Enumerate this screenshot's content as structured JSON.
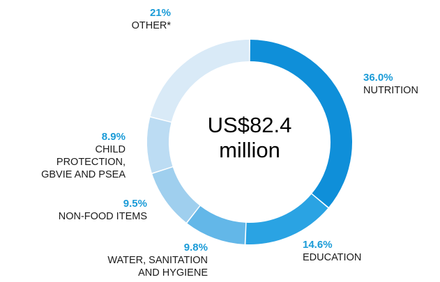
{
  "chart_data": {
    "type": "pie",
    "style": "donut",
    "center_label": [
      "US$82.4",
      "million"
    ],
    "slices": [
      {
        "label": "NUTRITION",
        "value": 36.0,
        "value_text": "36.0%",
        "color": "#0f8fd9"
      },
      {
        "label": "EDUCATION",
        "value": 14.6,
        "value_text": "14.6%",
        "color": "#2aa3e3"
      },
      {
        "label": "WATER, SANITATION\nAND HYGIENE",
        "value": 9.8,
        "value_text": "9.8%",
        "color": "#63b7e8"
      },
      {
        "label": "NON-FOOD ITEMS",
        "value": 9.5,
        "value_text": "9.5%",
        "color": "#9fcfee"
      },
      {
        "label": "CHILD\nPROTECTION,\nGBVIE AND PSEA",
        "value": 8.9,
        "value_text": "8.9%",
        "color": "#bcdcf3"
      },
      {
        "label": "OTHER*",
        "value": 21,
        "value_text": "21%",
        "color": "#d9eaf7"
      }
    ]
  }
}
